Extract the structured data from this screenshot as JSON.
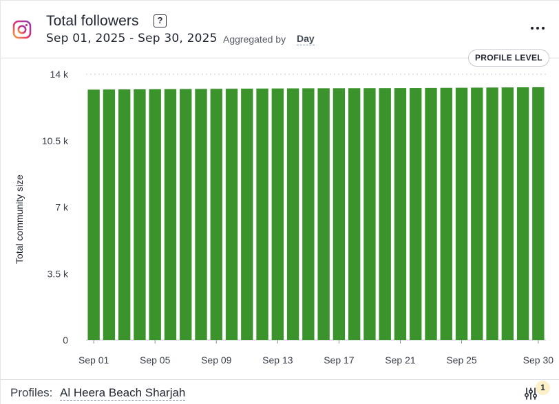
{
  "header": {
    "title": "Total followers",
    "help_label": "?",
    "date_range": "Sep 01, 2025 - Sep 30, 2025",
    "aggregated_label": "Aggregated by",
    "aggregated_value": "Day",
    "menu_icon": "more-horizontal-icon",
    "network_icon": "instagram-icon"
  },
  "badge": {
    "label": "PROFILE LEVEL"
  },
  "footer": {
    "profiles_label": "Profiles:",
    "profiles_value": "Al Heera Beach Sharjah",
    "filter_icon": "sliders-icon",
    "filter_count": "1"
  },
  "colors": {
    "bar": "#3b932c",
    "grid": "#d5d8dd",
    "axis_text": "#3a3f4a",
    "badge_bg": "#fbf0c8"
  },
  "chart_data": {
    "type": "bar",
    "title": "Total followers",
    "xlabel": "",
    "ylabel": "Total community size",
    "ylim": [
      0,
      14000
    ],
    "ytick_values": [
      0,
      3500,
      7000,
      10500,
      14000
    ],
    "ytick_labels": [
      "0",
      "3.5 k",
      "7 k",
      "10.5 k",
      "14 k"
    ],
    "grid": "top dotted line only",
    "categories": [
      "Sep 01",
      "Sep 02",
      "Sep 03",
      "Sep 04",
      "Sep 05",
      "Sep 06",
      "Sep 07",
      "Sep 08",
      "Sep 09",
      "Sep 10",
      "Sep 11",
      "Sep 12",
      "Sep 13",
      "Sep 14",
      "Sep 15",
      "Sep 16",
      "Sep 17",
      "Sep 18",
      "Sep 19",
      "Sep 20",
      "Sep 21",
      "Sep 22",
      "Sep 23",
      "Sep 24",
      "Sep 25",
      "Sep 26",
      "Sep 27",
      "Sep 28",
      "Sep 29",
      "Sep 30"
    ],
    "xtick_labels": [
      "Sep 01",
      "Sep 05",
      "Sep 09",
      "Sep 13",
      "Sep 17",
      "Sep 21",
      "Sep 25",
      "Sep 30"
    ],
    "values": [
      13190,
      13195,
      13200,
      13205,
      13210,
      13215,
      13220,
      13225,
      13230,
      13235,
      13240,
      13245,
      13250,
      13255,
      13260,
      13262,
      13264,
      13266,
      13268,
      13270,
      13272,
      13275,
      13280,
      13285,
      13290,
      13295,
      13300,
      13305,
      13310,
      13315
    ]
  }
}
